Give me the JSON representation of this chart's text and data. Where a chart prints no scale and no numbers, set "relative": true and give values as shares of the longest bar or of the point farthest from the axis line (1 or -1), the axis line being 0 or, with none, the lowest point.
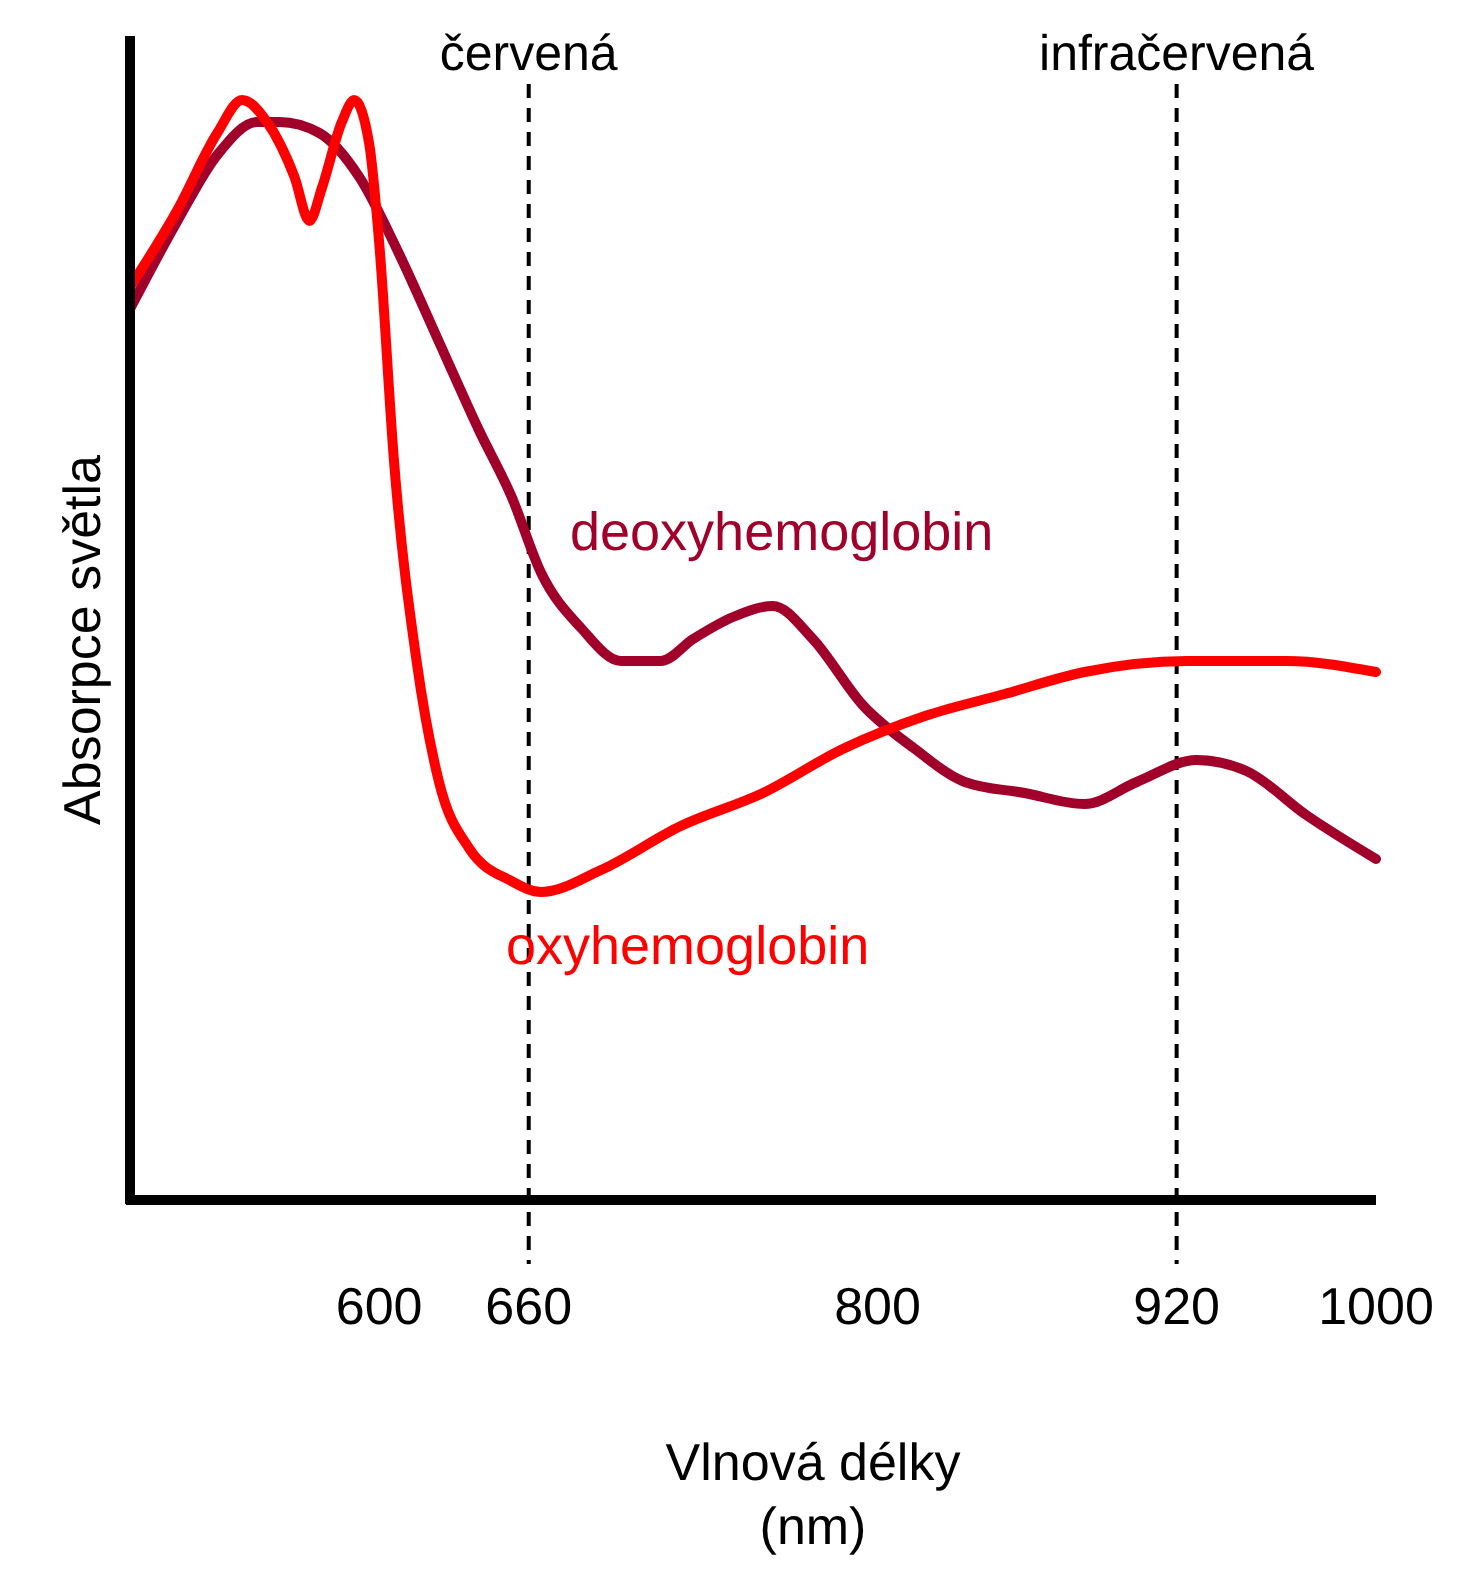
{
  "chart_data": {
    "type": "line",
    "relative": true,
    "xlabel": "Vlnová délky (nm)",
    "ylabel": "Absorpce světla",
    "xlim": [
      500,
      1000
    ],
    "xticks": [
      600,
      660,
      800,
      920,
      1000
    ],
    "legend": false,
    "grid": false,
    "marker": "none",
    "line_style": "solid",
    "ref_lines": [
      {
        "axis": "x",
        "value": 660,
        "label": "červená",
        "line_style": "dashed",
        "color": "#000000"
      },
      {
        "axis": "x",
        "value": 920,
        "label": "infračervená",
        "line_style": "dashed",
        "color": "#000000"
      }
    ],
    "series": [
      {
        "name": "deoxyhemoglobin",
        "color": "#a0002a",
        "x": [
          500,
          519,
          535,
          551,
          560,
          576,
          592,
          608,
          624,
          640,
          653,
          665,
          681,
          697,
          713,
          726,
          742,
          758,
          774,
          794,
          815,
          835,
          859,
          883,
          904,
          928,
          948,
          972,
          1000
        ],
        "values": [
          0.81,
          0.89,
          0.95,
          0.98,
          0.98,
          0.97,
          0.93,
          0.86,
          0.78,
          0.7,
          0.64,
          0.57,
          0.52,
          0.49,
          0.49,
          0.51,
          0.53,
          0.54,
          0.51,
          0.45,
          0.41,
          0.38,
          0.37,
          0.36,
          0.38,
          0.4,
          0.39,
          0.35,
          0.31
        ]
      },
      {
        "name": "oxyhemoglobin",
        "color": "#ff0000",
        "x": [
          500,
          519,
          535,
          545,
          555,
          566,
          572,
          577,
          585,
          590,
          596,
          600,
          606,
          615,
          624,
          636,
          653,
          665,
          689,
          721,
          754,
          786,
          819,
          851,
          883,
          924,
          964,
          1000
        ],
        "values": [
          0.83,
          0.9,
          0.97,
          1.0,
          0.98,
          0.93,
          0.89,
          0.92,
          0.98,
          1.0,
          0.96,
          0.87,
          0.67,
          0.49,
          0.38,
          0.32,
          0.29,
          0.28,
          0.3,
          0.34,
          0.37,
          0.41,
          0.44,
          0.46,
          0.48,
          0.49,
          0.49,
          0.48
        ]
      }
    ]
  }
}
